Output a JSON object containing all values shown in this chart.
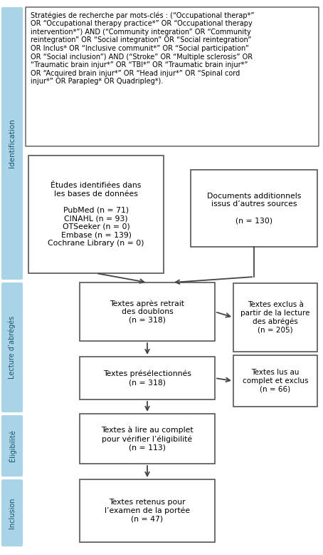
{
  "fig_width": 4.54,
  "fig_height": 7.78,
  "bg_color": "#ffffff",
  "sidebar_bg": "#a8d4e6",
  "sidebar_text_color": "#1a5276",
  "box_bg": "#ffffff",
  "box_ec": "#555555",
  "arrow_color": "#444444",
  "search_text": "Stratégies de recherche par mots-clés : (“Occupational therap*”\nOR “Occupational therapy practice*” OR “Occupational therapy\nintervention*”) AND (“Community integration” OR “Community\nreintegration” OR “Social integration” OR “Social reintegration”\nOR Inclus* OR “Inclusive communit*” OR “Social participation”\nOR “Social inclusion”) AND (“Stroke” OR “Multiple sclerosis” OR\n“Traumatic brain injur*” OR “TBI*” OR “Traumatic brain injur*”\nOR “Acquired brain injur*” OR “Head injur*” OR “Spinal cord\ninjur*” OR Parapleg* OR Quadripleg*).",
  "box1_text": "Études identifiées dans\nles bases de données\n\nPubMed (n = 71)\nCINAHL (n = 93)\nOTSeeker (n = 0)\nEmbase (n = 139)\nCochrane Library (n = 0)",
  "box2_text": "Documents additionnels\nissus d’autres sources\n\n(n = 130)",
  "box3_text": "Textes après retrait\ndes doublons\n(n = 318)",
  "box4_text": "Textes exclus à\npartir de la lecture\ndes abrégés\n(n = 205)",
  "box5_text": "Textes présélectionnés\n(n = 318)",
  "box6_text": "Textes lus au\ncomplet et exclus\n(n = 66)",
  "box7_text": "Textes à lire au complet\npour vérifier l’éligibilité\n(n = 113)",
  "box8_text": "Textes retenus pour\nl’examen de la portée\n(n = 47)",
  "sidebar_labels": [
    "Identification",
    "Lecture d’abrégés",
    "Éligibilité",
    "Inclusion"
  ]
}
